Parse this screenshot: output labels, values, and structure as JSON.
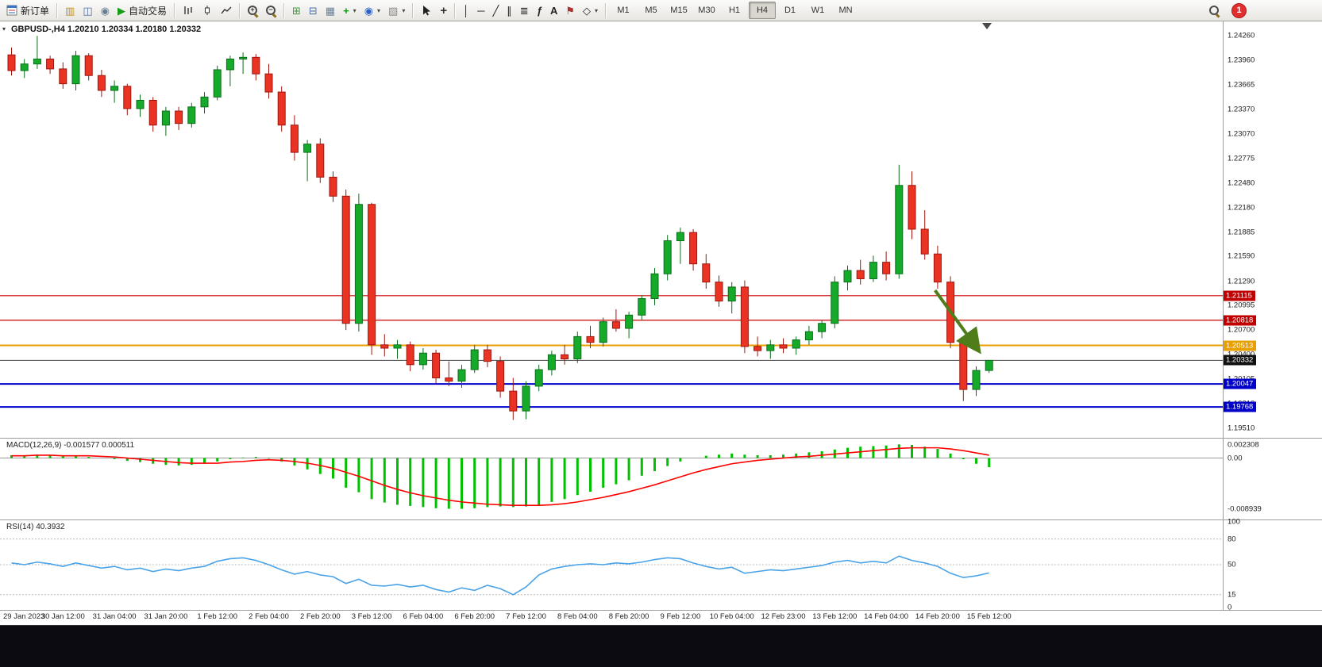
{
  "toolbar": {
    "new_order": "新订单",
    "autotrading": "自动交易",
    "timeframes": [
      "M1",
      "M5",
      "M15",
      "M30",
      "H1",
      "H4",
      "D1",
      "W1",
      "MN"
    ],
    "active_timeframe": "H4",
    "notification_count": "1",
    "icons": {
      "market_watch": "▥",
      "data_window": "◫",
      "navigator": "◉",
      "autotrading_play": "▶",
      "tile_windows": "⊞",
      "cascade_windows": "⊟",
      "arrange_windows": "▦",
      "new_chart_plus": "+",
      "profiles": "◉",
      "templates": "▧",
      "dropdown_arrow": "▾",
      "crosshair": "+",
      "vertical_line": "│",
      "horizontal_line": "─",
      "trendline": "╱",
      "channel": "∥",
      "fibonacci": "≣",
      "indicators_fn": "ƒ",
      "text_tool": "A",
      "label_flag": "⚑",
      "shapes": "◇",
      "one_click_toggle": "▾"
    }
  },
  "chart_data": {
    "type": "candlestick",
    "symbol": "GBPUSD",
    "timeframe": "H4",
    "title": "GBPUSD-,H4 1.20210 1.20334 1.20180 1.20332",
    "price_range": {
      "min": 1.19395,
      "max": 1.24435
    },
    "y_axis_labels": [
      "1.24260",
      "1.23960",
      "1.23665",
      "1.23370",
      "1.23070",
      "1.22775",
      "1.22480",
      "1.22180",
      "1.21885",
      "1.21590",
      "1.21290",
      "1.20995",
      "1.20700",
      "1.20400",
      "1.20105",
      "1.19810",
      "1.19510"
    ],
    "x_labels": [
      "29 Jan 2023",
      "30 Jan 12:00",
      "31 Jan 04:00",
      "31 Jan 20:00",
      "1 Feb 12:00",
      "2 Feb 04:00",
      "2 Feb 20:00",
      "3 Feb 12:00",
      "6 Feb 04:00",
      "6 Feb 20:00",
      "7 Feb 12:00",
      "8 Feb 04:00",
      "8 Feb 20:00",
      "9 Feb 12:00",
      "10 Feb 04:00",
      "12 Feb 23:00",
      "13 Feb 12:00",
      "14 Feb 04:00",
      "14 Feb 20:00",
      "15 Feb 12:00"
    ],
    "bars_per_label": 4,
    "candle_up_color": "#15aa2a",
    "candle_up_border": "#0b6e1b",
    "candle_down_color": "#ea3323",
    "candle_down_border": "#9e160e",
    "ohlc": [
      [
        1.2403,
        1.2412,
        1.2378,
        1.2384
      ],
      [
        1.2384,
        1.2398,
        1.2375,
        1.2392
      ],
      [
        1.2392,
        1.2426,
        1.2386,
        1.2398
      ],
      [
        1.2398,
        1.2402,
        1.238,
        1.2386
      ],
      [
        1.2386,
        1.2394,
        1.2362,
        1.2368
      ],
      [
        1.2368,
        1.2408,
        1.236,
        1.2402
      ],
      [
        1.2402,
        1.2405,
        1.2372,
        1.2378
      ],
      [
        1.2378,
        1.2385,
        1.2352,
        1.236
      ],
      [
        1.236,
        1.2372,
        1.2345,
        1.2365
      ],
      [
        1.2365,
        1.2368,
        1.233,
        1.2338
      ],
      [
        1.2338,
        1.2355,
        1.2328,
        1.2348
      ],
      [
        1.2348,
        1.2352,
        1.231,
        1.2318
      ],
      [
        1.2318,
        1.234,
        1.2305,
        1.2335
      ],
      [
        1.2335,
        1.234,
        1.2312,
        1.232
      ],
      [
        1.232,
        1.2345,
        1.2315,
        1.234
      ],
      [
        1.234,
        1.2358,
        1.2332,
        1.2352
      ],
      [
        1.2352,
        1.239,
        1.2348,
        1.2385
      ],
      [
        1.2385,
        1.2402,
        1.2365,
        1.2398
      ],
      [
        1.2398,
        1.2406,
        1.238,
        1.24
      ],
      [
        1.24,
        1.2404,
        1.2372,
        1.238
      ],
      [
        1.238,
        1.2392,
        1.235,
        1.2358
      ],
      [
        1.2358,
        1.2365,
        1.231,
        1.2318
      ],
      [
        1.2318,
        1.233,
        1.2275,
        1.2285
      ],
      [
        1.2285,
        1.23,
        1.225,
        1.2295
      ],
      [
        1.2295,
        1.2302,
        1.2248,
        1.2255
      ],
      [
        1.2255,
        1.2262,
        1.2225,
        1.2232
      ],
      [
        1.2232,
        1.224,
        1.207,
        1.2078
      ],
      [
        1.2078,
        1.2235,
        1.2068,
        1.2222
      ],
      [
        1.2222,
        1.2224,
        1.204,
        1.2052
      ],
      [
        1.2052,
        1.2065,
        1.2038,
        1.2048
      ],
      [
        1.2048,
        1.2058,
        1.2035,
        1.2052
      ],
      [
        1.2052,
        1.2056,
        1.202,
        1.2028
      ],
      [
        1.2028,
        1.2048,
        1.2022,
        1.2042
      ],
      [
        1.2042,
        1.2046,
        1.2005,
        1.2012
      ],
      [
        1.2012,
        1.2032,
        1.2002,
        1.2008
      ],
      [
        1.2008,
        1.2028,
        1.2,
        1.2022
      ],
      [
        1.2022,
        1.2052,
        1.2018,
        1.2046
      ],
      [
        1.2046,
        1.2052,
        1.2025,
        1.2032
      ],
      [
        1.2032,
        1.2038,
        1.1988,
        1.1996
      ],
      [
        1.1996,
        1.2012,
        1.1961,
        1.1972
      ],
      [
        1.1972,
        1.2008,
        1.1962,
        1.2002
      ],
      [
        1.2002,
        1.2028,
        1.1996,
        1.2022
      ],
      [
        1.2022,
        1.2045,
        1.2015,
        1.204
      ],
      [
        1.204,
        1.2052,
        1.2028,
        1.2035
      ],
      [
        1.2035,
        1.2068,
        1.203,
        1.2062
      ],
      [
        1.2062,
        1.2075,
        1.2048,
        1.2055
      ],
      [
        1.2055,
        1.2085,
        1.205,
        1.208
      ],
      [
        1.208,
        1.2095,
        1.2068,
        1.2072
      ],
      [
        1.2072,
        1.2092,
        1.206,
        1.2088
      ],
      [
        1.2088,
        1.2112,
        1.2082,
        1.2108
      ],
      [
        1.2108,
        1.2145,
        1.21,
        1.2138
      ],
      [
        1.2138,
        1.2185,
        1.213,
        1.2178
      ],
      [
        1.2178,
        1.2194,
        1.215,
        1.2188
      ],
      [
        1.2188,
        1.2192,
        1.2142,
        1.215
      ],
      [
        1.215,
        1.2162,
        1.212,
        1.2128
      ],
      [
        1.2128,
        1.2136,
        1.2098,
        1.2105
      ],
      [
        1.2105,
        1.2128,
        1.209,
        1.2122
      ],
      [
        1.2122,
        1.213,
        1.2042,
        1.205
      ],
      [
        1.205,
        1.2062,
        1.2038,
        1.2045
      ],
      [
        1.2045,
        1.2058,
        1.2035,
        1.2052
      ],
      [
        1.2052,
        1.206,
        1.2042,
        1.2048
      ],
      [
        1.2048,
        1.2062,
        1.204,
        1.2058
      ],
      [
        1.2058,
        1.2075,
        1.2052,
        1.2068
      ],
      [
        1.2068,
        1.2082,
        1.206,
        1.2078
      ],
      [
        1.2078,
        1.2135,
        1.2072,
        1.2128
      ],
      [
        1.2128,
        1.2148,
        1.2118,
        1.2142
      ],
      [
        1.2142,
        1.2155,
        1.2125,
        1.2132
      ],
      [
        1.2132,
        1.216,
        1.2128,
        1.2152
      ],
      [
        1.2152,
        1.2165,
        1.213,
        1.2138
      ],
      [
        1.2138,
        1.227,
        1.2132,
        1.2245
      ],
      [
        1.2245,
        1.2262,
        1.218,
        1.2192
      ],
      [
        1.2192,
        1.2215,
        1.2155,
        1.2162
      ],
      [
        1.2162,
        1.2172,
        1.212,
        1.2128
      ],
      [
        1.2128,
        1.2135,
        1.2048,
        1.2055
      ],
      [
        1.2055,
        1.206,
        1.1984,
        1.1998
      ],
      [
        1.1998,
        1.2026,
        1.199,
        1.2021
      ],
      [
        1.2021,
        1.20334,
        1.2018,
        1.20332
      ]
    ],
    "horizontal_lines": [
      {
        "price": 1.21115,
        "label": "1.21115",
        "color": "#cc0000",
        "width": 1.2,
        "label_bg": "#c00000"
      },
      {
        "price": 1.20818,
        "label": "1.20818",
        "color": "#cc0000",
        "width": 1.2,
        "label_bg": "#c00000"
      },
      {
        "price": 1.20513,
        "label": "1.20513",
        "color": "#e8a000",
        "width": 2,
        "label_bg": "#e8a000"
      },
      {
        "price": 1.20332,
        "label": "1.20332",
        "color": "#444444",
        "width": 1,
        "label_bg": "#111111"
      },
      {
        "price": 1.20047,
        "label": "1.20047",
        "color": "#0000cc",
        "width": 2,
        "label_bg": "#0000c8"
      },
      {
        "price": 1.19768,
        "label": "1.19768",
        "color": "#0000cc",
        "width": 2,
        "label_bg": "#0000c8"
      }
    ],
    "arrow_annotation": {
      "from_bar": 71.8,
      "from_price": 1.2118,
      "to_bar": 75.1,
      "to_price": 1.2047,
      "color": "#4e7d1a"
    },
    "indicators": {
      "macd": {
        "label": "MACD(12,26,9) -0.001577 0.000511",
        "axis_labels": [
          "0.002308",
          "0.00",
          "-0.008939"
        ],
        "range": {
          "min": -0.0105,
          "max": 0.003
        },
        "histogram_color": "#00c000",
        "signal_color": "#ff0000",
        "histogram": [
          0.0005,
          0.0004,
          0.0006,
          0.0005,
          0.0003,
          0.0004,
          0.0002,
          0.0,
          -0.0002,
          -0.0005,
          -0.0007,
          -0.001,
          -0.0012,
          -0.0013,
          -0.0012,
          -0.001,
          -0.0006,
          -0.0002,
          0.0001,
          0.0002,
          -0.0001,
          -0.0006,
          -0.0013,
          -0.002,
          -0.0028,
          -0.0036,
          -0.0052,
          -0.006,
          -0.0072,
          -0.0078,
          -0.0082,
          -0.0084,
          -0.0086,
          -0.0088,
          -0.0089,
          -0.0089,
          -0.0088,
          -0.0086,
          -0.0085,
          -0.0086,
          -0.0085,
          -0.0082,
          -0.0077,
          -0.0072,
          -0.0065,
          -0.0059,
          -0.0052,
          -0.0046,
          -0.0039,
          -0.0031,
          -0.0023,
          -0.0014,
          -0.0006,
          0.0,
          0.0004,
          0.0006,
          0.0008,
          0.0006,
          0.0005,
          0.0005,
          0.0006,
          0.0008,
          0.001,
          0.0012,
          0.0015,
          0.0018,
          0.002,
          0.0021,
          0.0022,
          0.0024,
          0.0023,
          0.002,
          0.0016,
          0.0008,
          -0.0002,
          -0.001,
          -0.0016
        ],
        "signal": [
          0.0004,
          0.0004,
          0.0005,
          0.0005,
          0.0004,
          0.0004,
          0.0004,
          0.0003,
          0.0002,
          0.0,
          -0.0002,
          -0.0004,
          -0.0006,
          -0.0008,
          -0.0009,
          -0.0009,
          -0.0009,
          -0.0007,
          -0.0006,
          -0.0004,
          -0.0003,
          -0.0004,
          -0.0006,
          -0.0009,
          -0.0013,
          -0.0018,
          -0.0025,
          -0.0032,
          -0.004,
          -0.0048,
          -0.0055,
          -0.0061,
          -0.0066,
          -0.007,
          -0.0074,
          -0.0077,
          -0.0079,
          -0.0081,
          -0.0082,
          -0.0083,
          -0.0083,
          -0.0083,
          -0.0082,
          -0.008,
          -0.0077,
          -0.0073,
          -0.0069,
          -0.0064,
          -0.0059,
          -0.0053,
          -0.0047,
          -0.004,
          -0.0033,
          -0.0026,
          -0.002,
          -0.0015,
          -0.001,
          -0.0007,
          -0.0004,
          -0.0002,
          0.0,
          0.0002,
          0.0003,
          0.0005,
          0.0007,
          0.0009,
          0.0011,
          0.0013,
          0.0015,
          0.0017,
          0.0018,
          0.0018,
          0.0018,
          0.0016,
          0.0013,
          0.0009,
          0.0005
        ]
      },
      "rsi": {
        "label": "RSI(14) 40.3932",
        "axis_labels": [
          "100",
          "80",
          "50",
          "15",
          "0"
        ],
        "levels": [
          80,
          50,
          15
        ],
        "line_color": "#4aa3e8",
        "values": [
          52,
          50,
          53,
          51,
          48,
          52,
          49,
          46,
          48,
          44,
          46,
          42,
          45,
          43,
          46,
          48,
          54,
          57,
          58,
          55,
          50,
          44,
          39,
          42,
          38,
          36,
          28,
          33,
          26,
          25,
          27,
          24,
          26,
          21,
          18,
          23,
          20,
          26,
          22,
          15,
          24,
          38,
          45,
          48,
          50,
          51,
          50,
          52,
          51,
          53,
          56,
          58,
          57,
          52,
          48,
          45,
          47,
          40,
          42,
          44,
          43,
          45,
          47,
          49,
          53,
          55,
          52,
          54,
          52,
          60,
          55,
          52,
          48,
          40,
          35,
          37,
          40.4
        ]
      }
    }
  }
}
